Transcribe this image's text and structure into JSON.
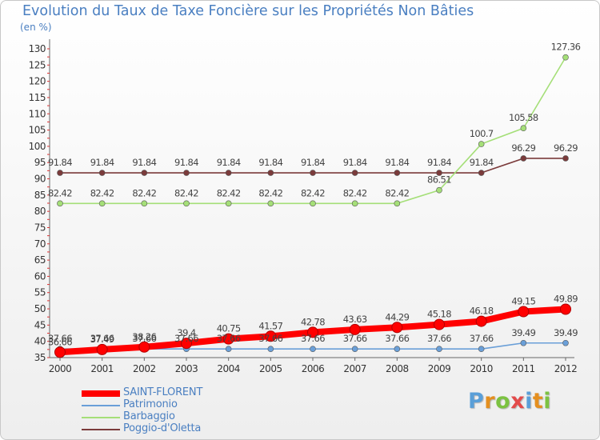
{
  "title": "Evolution du Taux de Taxe Foncière sur les Propriétés Non Bâties",
  "unit": "(en %)",
  "chart_data": {
    "type": "line",
    "categories": [
      "2000",
      "2001",
      "2002",
      "2003",
      "2004",
      "2005",
      "2006",
      "2007",
      "2008",
      "2009",
      "2010",
      "2011",
      "2012"
    ],
    "ylim": [
      35,
      130
    ],
    "y_ticks": [
      35,
      40,
      45,
      50,
      55,
      60,
      65,
      70,
      75,
      80,
      85,
      90,
      95,
      100,
      105,
      110,
      115,
      120,
      125,
      130
    ],
    "grid": false,
    "legend_position": "bottom-left",
    "series": [
      {
        "name": "SAINT-FLORENT",
        "color": "#ff0000",
        "values": [
          36.66,
          37.49,
          38.26,
          39.4,
          40.75,
          41.57,
          42.78,
          43.63,
          44.29,
          45.18,
          46.18,
          49.15,
          49.89
        ],
        "labels": [
          "36.66",
          "37.49",
          "38.26",
          "39.4",
          "40.75",
          "41.57",
          "42.78",
          "43.63",
          "44.29",
          "45.18",
          "46.18",
          "49.15",
          "49.89"
        ]
      },
      {
        "name": "Patrimonio",
        "color": "#6a9fd8",
        "values": [
          37.66,
          37.66,
          37.66,
          37.66,
          37.66,
          37.66,
          37.66,
          37.66,
          37.66,
          37.66,
          37.66,
          39.49,
          39.49
        ],
        "labels": [
          "37.66",
          "37.66",
          "37.66",
          "37.66",
          "37.66",
          "37.66",
          "37.66",
          "37.66",
          "37.66",
          "37.66",
          "37.66",
          "39.49",
          "39.49"
        ]
      },
      {
        "name": "Barbaggio",
        "color": "#a5df78",
        "values": [
          82.42,
          82.42,
          82.42,
          82.42,
          82.42,
          82.42,
          82.42,
          82.42,
          82.42,
          86.51,
          100.7,
          105.58,
          127.36
        ],
        "labels": [
          "82.42",
          "82.42",
          "82.42",
          "82.42",
          "82.42",
          "82.42",
          "82.42",
          "82.42",
          "82.42",
          "86.51",
          "100.7",
          "105.58",
          "127.36"
        ]
      },
      {
        "name": "Poggio-d'Oletta",
        "color": "#7b3b3b",
        "values": [
          91.84,
          91.84,
          91.84,
          91.84,
          91.84,
          91.84,
          91.84,
          91.84,
          91.84,
          91.84,
          91.84,
          96.29,
          96.29
        ],
        "labels": [
          "91.84",
          "91.84",
          "91.84",
          "91.84",
          "91.84",
          "91.84",
          "91.84",
          "91.84",
          "91.84",
          "91.84",
          "91.84",
          "96.29",
          "96.29"
        ]
      }
    ]
  },
  "logo": {
    "letters": [
      {
        "ch": "P",
        "color": "#5a9fd8"
      },
      {
        "ch": "r",
        "color": "#e48f1f"
      },
      {
        "ch": "o",
        "color": "#7cc242"
      },
      {
        "ch": "x",
        "color": "#e34a4a"
      },
      {
        "ch": "i",
        "color": "#5a9fd8"
      },
      {
        "ch": "t",
        "color": "#e48f1f"
      },
      {
        "ch": "i",
        "color": "#7cc242"
      }
    ]
  }
}
